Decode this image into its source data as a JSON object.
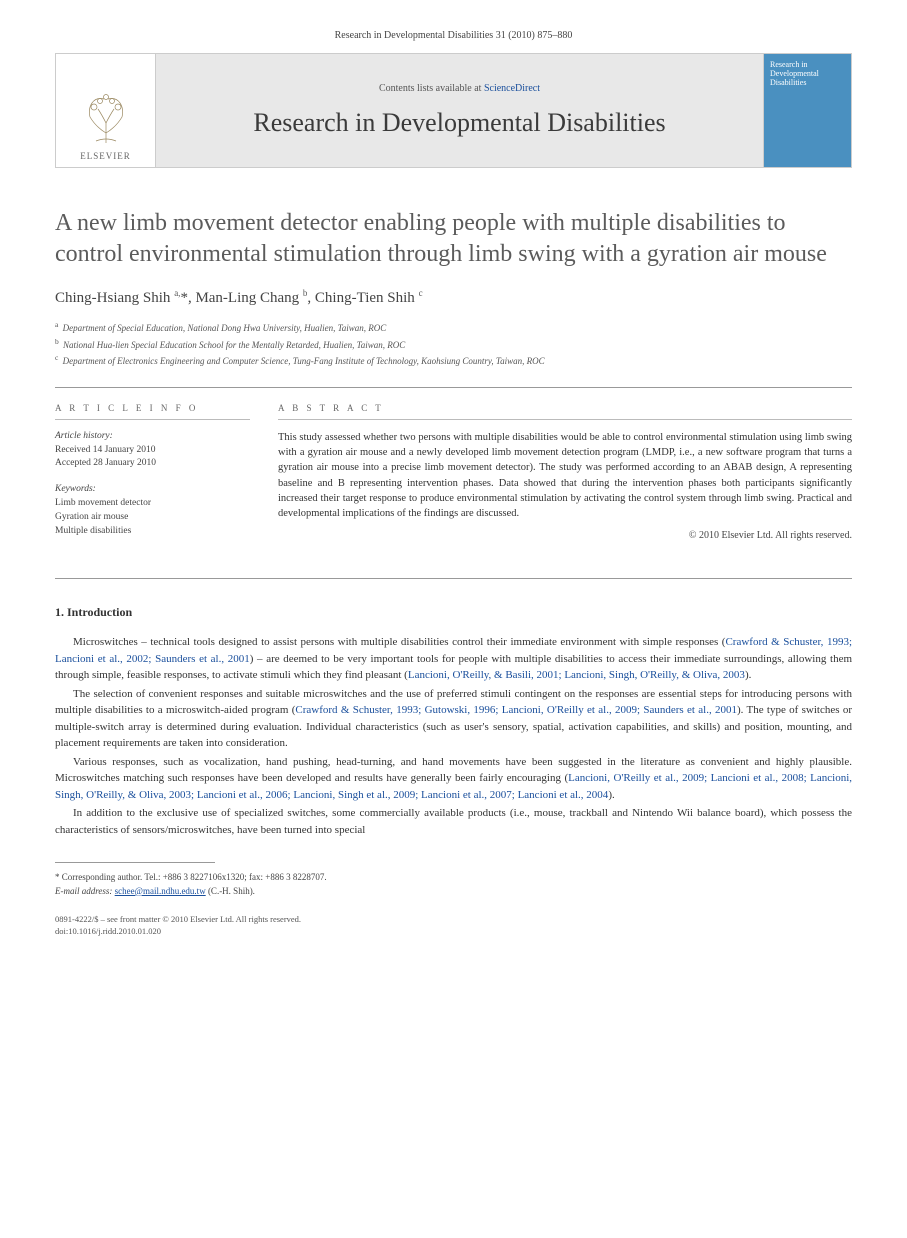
{
  "running_head": "Research in Developmental Disabilities 31 (2010) 875–880",
  "masthead": {
    "elsevier": "ELSEVIER",
    "contents_prefix": "Contents lists available at ",
    "contents_link": "ScienceDirect",
    "journal_name": "Research in Developmental Disabilities",
    "cover_title": "Research in Developmental Disabilities",
    "cover_bg": "#4a90c0",
    "header_bg": "#e8e8e8",
    "link_color": "#1a4f9c"
  },
  "title": "A new limb movement detector enabling people with multiple disabilities to control environmental stimulation through limb swing with a gyration air mouse",
  "authors_html": "Ching-Hsiang Shih <sup>a,</sup>*, Man-Ling Chang <sup>b</sup>, Ching-Tien Shih <sup>c</sup>",
  "affiliations": [
    {
      "sup": "a",
      "text": "Department of Special Education, National Dong Hwa University, Hualien, Taiwan, ROC"
    },
    {
      "sup": "b",
      "text": "National Hua-lien Special Education School for the Mentally Retarded, Hualien, Taiwan, ROC"
    },
    {
      "sup": "c",
      "text": "Department of Electronics Engineering and Computer Science, Tung-Fang Institute of Technology, Kaohsiung Country, Taiwan, ROC"
    }
  ],
  "article_info": {
    "heading": "A R T I C L E   I N F O",
    "history_label": "Article history:",
    "received": "Received 14 January 2010",
    "accepted": "Accepted 28 January 2010",
    "keywords_label": "Keywords:",
    "keywords": [
      "Limb movement detector",
      "Gyration air mouse",
      "Multiple disabilities"
    ]
  },
  "abstract": {
    "heading": "A B S T R A C T",
    "text": "This study assessed whether two persons with multiple disabilities would be able to control environmental stimulation using limb swing with a gyration air mouse and a newly developed limb movement detection program (LMDP, i.e., a new software program that turns a gyration air mouse into a precise limb movement detector). The study was performed according to an ABAB design, A representing baseline and B representing intervention phases. Data showed that during the intervention phases both participants significantly increased their target response to produce environmental stimulation by activating the control system through limb swing. Practical and developmental implications of the findings are discussed.",
    "copyright": "© 2010 Elsevier Ltd. All rights reserved."
  },
  "section1": {
    "heading": "1.  Introduction",
    "paras": [
      {
        "segments": [
          {
            "t": "Microswitches – technical tools designed to assist persons with multiple disabilities control their immediate environment with simple responses ("
          },
          {
            "t": "Crawford & Schuster, 1993; Lancioni et al., 2002; Saunders et al., 2001",
            "cite": true
          },
          {
            "t": ") – are deemed to be very important tools for people with multiple disabilities to access their immediate surroundings, allowing them through simple, feasible responses, to activate stimuli which they find pleasant ("
          },
          {
            "t": "Lancioni, O'Reilly, & Basili, 2001; Lancioni, Singh, O'Reilly, & Oliva, 2003",
            "cite": true
          },
          {
            "t": ")."
          }
        ]
      },
      {
        "segments": [
          {
            "t": "The selection of convenient responses and suitable microswitches and the use of preferred stimuli contingent on the responses are essential steps for introducing persons with multiple disabilities to a microswitch-aided program ("
          },
          {
            "t": "Crawford & Schuster, 1993; Gutowski, 1996; Lancioni, O'Reilly et al., 2009; Saunders et al., 2001",
            "cite": true
          },
          {
            "t": "). The type of switches or multiple-switch array is determined during evaluation. Individual characteristics (such as user's sensory, spatial, activation capabilities, and skills) and position, mounting, and placement requirements are taken into consideration."
          }
        ]
      },
      {
        "segments": [
          {
            "t": "Various responses, such as vocalization, hand pushing, head-turning, and hand movements have been suggested in the literature as convenient and highly plausible. Microswitches matching such responses have been developed and results have generally been fairly encouraging ("
          },
          {
            "t": "Lancioni, O'Reilly et al., 2009; Lancioni et al., 2008; Lancioni, Singh, O'Reilly, & Oliva, 2003; Lancioni et al., 2006; Lancioni, Singh et al., 2009; Lancioni et al., 2007; Lancioni et al., 2004",
            "cite": true
          },
          {
            "t": ")."
          }
        ]
      },
      {
        "segments": [
          {
            "t": "In addition to the exclusive use of specialized switches, some commercially available products (i.e., mouse, trackball and Nintendo Wii balance board), which possess the characteristics of sensors/microswitches, have been turned into special"
          }
        ]
      }
    ]
  },
  "footnote": {
    "corr": "* Corresponding author. Tel.: +886 3 8227106x1320; fax: +886 3 8228707.",
    "email_label": "E-mail address: ",
    "email": "schee@mail.ndhu.edu.tw",
    "email_suffix": " (C.-H. Shih)."
  },
  "colophon": {
    "line1": "0891-4222/$ – see front matter © 2010 Elsevier Ltd. All rights reserved.",
    "line2": "doi:10.1016/j.ridd.2010.01.020"
  },
  "colors": {
    "text": "#333333",
    "muted": "#555555",
    "rule": "#999999",
    "link": "#1a4f9c"
  }
}
